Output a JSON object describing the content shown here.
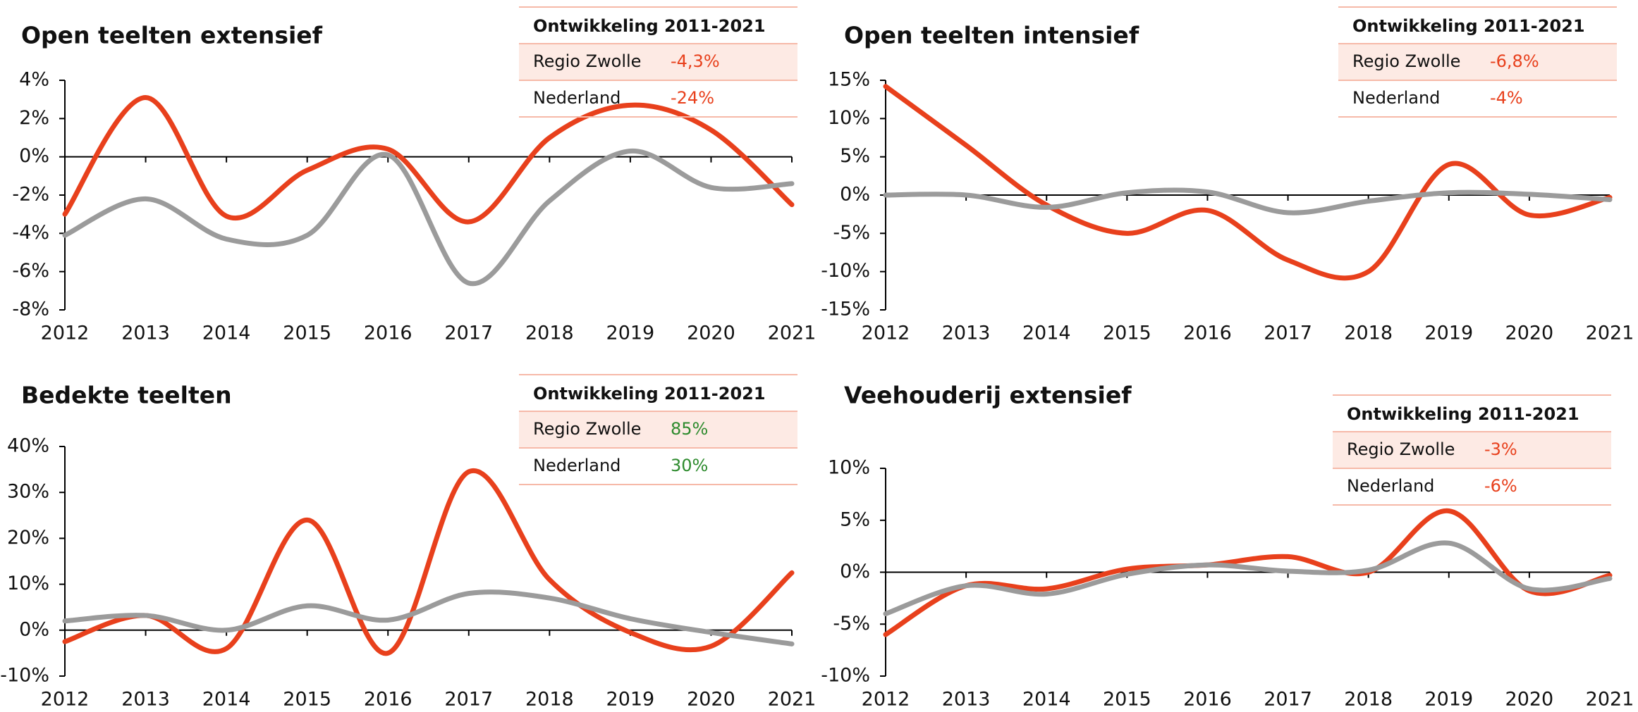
{
  "chart_data": [
    {
      "type": "line",
      "title": "Open teelten extensief",
      "categories": [
        "2012",
        "2013",
        "2014",
        "2015",
        "2016",
        "2017",
        "2018",
        "2019",
        "2020",
        "2021"
      ],
      "ylim": [
        -8,
        4
      ],
      "yticks": [
        {
          "value": -8,
          "label": "-8%"
        },
        {
          "value": -6,
          "label": "-6%"
        },
        {
          "value": -4,
          "label": "-4%"
        },
        {
          "value": -2,
          "label": "-2%"
        },
        {
          "value": 0,
          "label": "0%"
        },
        {
          "value": 2,
          "label": "2%"
        },
        {
          "value": 4,
          "label": "4%"
        }
      ],
      "series": [
        {
          "name": "Regio Zwolle",
          "color": "#e8401c",
          "values": [
            -3,
            3.1,
            -3.1,
            -0.7,
            0.4,
            -3.4,
            1,
            2.7,
            1.4,
            -2.5
          ]
        },
        {
          "name": "Nederland",
          "color": "#9b9b9b",
          "values": [
            -4.1,
            -2.2,
            -4.3,
            -4.1,
            0.1,
            -6.6,
            -2.3,
            0.3,
            -1.6,
            -1.4
          ]
        }
      ],
      "development": {
        "title": "Ontwikkeling 2011-2021",
        "values": [
          "-4,3%",
          "-24%"
        ],
        "color": "#e8401c"
      }
    },
    {
      "type": "line",
      "title": "Open teelten intensief",
      "categories": [
        "2012",
        "2013",
        "2014",
        "2015",
        "2016",
        "2017",
        "2018",
        "2019",
        "2020",
        "2021"
      ],
      "ylim": [
        -15,
        15
      ],
      "yticks": [
        {
          "value": -15,
          "label": "-15%"
        },
        {
          "value": -10,
          "label": "-10%"
        },
        {
          "value": -5,
          "label": "-5%"
        },
        {
          "value": 0,
          "label": "0%"
        },
        {
          "value": 5,
          "label": "5%"
        },
        {
          "value": 10,
          "label": "10%"
        },
        {
          "value": 15,
          "label": "15%"
        }
      ],
      "series": [
        {
          "name": "Regio Zwolle",
          "color": "#e8401c",
          "values": [
            14.2,
            6.5,
            -1.3,
            -5,
            -2,
            -8.5,
            -10,
            4,
            -2.6,
            -0.3
          ]
        },
        {
          "name": "Nederland",
          "color": "#9b9b9b",
          "values": [
            0,
            0,
            -1.6,
            0.3,
            0.4,
            -2.3,
            -0.8,
            0.3,
            0.1,
            -0.6
          ]
        }
      ],
      "development": {
        "title": "Ontwikkeling 2011-2021",
        "values": [
          "-6,8%",
          "-4%"
        ],
        "color": "#e8401c"
      }
    },
    {
      "type": "line",
      "title": "Bedekte teelten",
      "categories": [
        "2012",
        "2013",
        "2014",
        "2015",
        "2016",
        "2017",
        "2018",
        "2019",
        "2020",
        "2021"
      ],
      "ylim": [
        -10,
        40
      ],
      "yticks": [
        {
          "value": -10,
          "label": "-10%"
        },
        {
          "value": 0,
          "label": "0%"
        },
        {
          "value": 10,
          "label": "10%"
        },
        {
          "value": 20,
          "label": "20%"
        },
        {
          "value": 30,
          "label": "30%"
        },
        {
          "value": 40,
          "label": "40%"
        }
      ],
      "series": [
        {
          "name": "Regio Zwolle",
          "color": "#e8401c",
          "values": [
            -2.5,
            3.2,
            -4,
            24,
            -5,
            34.5,
            11,
            -0.5,
            -3.5,
            12.5
          ]
        },
        {
          "name": "Nederland",
          "color": "#9b9b9b",
          "values": [
            2,
            3.2,
            0,
            5.3,
            2.2,
            8,
            7,
            2.5,
            -0.5,
            -3
          ]
        }
      ],
      "development": {
        "title": "Ontwikkeling 2011-2021",
        "values": [
          "85%",
          "30%"
        ],
        "color": "#2e8b2e"
      }
    },
    {
      "type": "line",
      "title": "Veehouderij extensief",
      "categories": [
        "2012",
        "2013",
        "2014",
        "2015",
        "2016",
        "2017",
        "2018",
        "2019",
        "2020",
        "2021"
      ],
      "ylim": [
        -10,
        10
      ],
      "yticks": [
        {
          "value": -10,
          "label": "-10%"
        },
        {
          "value": -5,
          "label": "-5%"
        },
        {
          "value": 0,
          "label": "0%"
        },
        {
          "value": 5,
          "label": "5%"
        },
        {
          "value": 10,
          "label": "10%"
        }
      ],
      "series": [
        {
          "name": "Regio Zwolle",
          "color": "#e8401c",
          "values": [
            -6,
            -1.3,
            -1.6,
            0.3,
            0.7,
            1.5,
            0,
            5.9,
            -1.8,
            -0.3
          ]
        },
        {
          "name": "Nederland",
          "color": "#9b9b9b",
          "values": [
            -4,
            -1.3,
            -2.1,
            -0.2,
            0.7,
            0.1,
            0.2,
            2.8,
            -1.6,
            -0.6
          ]
        }
      ],
      "development": {
        "title": "Ontwikkeling 2011-2021",
        "values": [
          "-3%",
          "-6%"
        ],
        "color": "#e8401c"
      }
    }
  ]
}
